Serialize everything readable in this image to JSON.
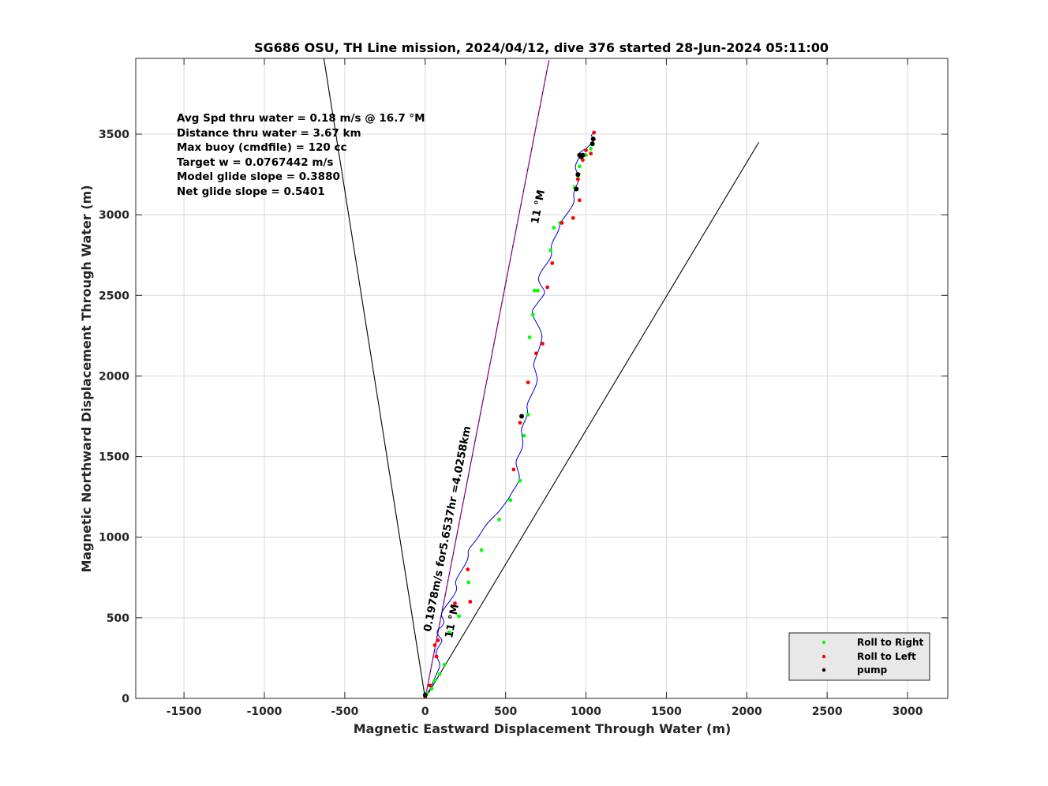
{
  "chart_data": {
    "type": "line",
    "title": "SG686 OSU, TH Line mission, 2024/04/12, dive 376 started 28-Jun-2024 05:11:00",
    "xlabel": "Magnetic Eastward Displacement Through Water (m)",
    "ylabel": "Magnetic Northward Displacement Through Water (m)",
    "xlim": [
      -1800,
      3250
    ],
    "ylim": [
      0,
      3970
    ],
    "xticks": [
      -1500,
      -1000,
      -500,
      0,
      500,
      1000,
      1500,
      2000,
      2500,
      3000
    ],
    "yticks": [
      0,
      500,
      1000,
      1500,
      2000,
      2500,
      3000,
      3500
    ],
    "grid": true,
    "stats_text": [
      "Avg Spd thru water  =  0.18 m/s @  16.7  °M",
      "Distance thru water =  3.67 km",
      "Max buoy (cmdfile)  = 120 cc",
      "Target w                    = 0.0767442 m/s",
      "Model glide slope    = 0.3880",
      "Net glide slope         = 0.5401"
    ],
    "annotations": {
      "heading_label_top": "11 °M",
      "heading_label_bottom": "11 °M",
      "speed_label": "0.1978m/s for5.6537hr =4.0258km"
    },
    "reference_lines": [
      {
        "name": "left-bound",
        "x": [
          0,
          -630
        ],
        "y": [
          0,
          3970
        ],
        "color": "#000000"
      },
      {
        "name": "right-bound",
        "x": [
          0,
          2075
        ],
        "y": [
          0,
          3450
        ],
        "color": "#000000"
      },
      {
        "name": "heading",
        "x": [
          0,
          770
        ],
        "y": [
          0,
          3960
        ],
        "color": "#000000"
      },
      {
        "name": "heading-target",
        "x": [
          0,
          770
        ],
        "y": [
          0,
          3960
        ],
        "color": "#cc00cc"
      }
    ],
    "series": [
      {
        "name": "track",
        "color": "#0000cc",
        "x": [
          0,
          20,
          45,
          60,
          80,
          95,
          75,
          65,
          90,
          110,
          80,
          70,
          110,
          120,
          95,
          120,
          150,
          180,
          200,
          185,
          205,
          230,
          255,
          270,
          265,
          300,
          330,
          355,
          380,
          420,
          460,
          490,
          520,
          540,
          570,
          590,
          575,
          560,
          590,
          610,
          605,
          595,
          620,
          640,
          630,
          655,
          680,
          700,
          690,
          670,
          690,
          710,
          720,
          730,
          710,
          680,
          660,
          690,
          720,
          750,
          720,
          700,
          720,
          760,
          790,
          780,
          800,
          830,
          840,
          870,
          900,
          930,
          920,
          940,
          960,
          945,
          930,
          950,
          960,
          955,
          980,
          1000,
          1010,
          1020,
          1030,
          1045,
          1040,
          1050,
          1045,
          1030,
          1040,
          1055
        ],
        "y": [
          0,
          40,
          90,
          130,
          170,
          210,
          250,
          290,
          330,
          360,
          390,
          420,
          450,
          480,
          520,
          560,
          600,
          640,
          680,
          720,
          760,
          800,
          840,
          880,
          920,
          960,
          1000,
          1040,
          1080,
          1120,
          1160,
          1200,
          1240,
          1280,
          1320,
          1370,
          1420,
          1470,
          1520,
          1570,
          1620,
          1670,
          1720,
          1770,
          1820,
          1870,
          1920,
          1970,
          2020,
          2070,
          2120,
          2170,
          2210,
          2250,
          2300,
          2350,
          2400,
          2440,
          2480,
          2520,
          2560,
          2600,
          2650,
          2700,
          2750,
          2800,
          2850,
          2900,
          2950,
          2990,
          3030,
          3080,
          3130,
          3180,
          3220,
          3260,
          3300,
          3340,
          3360,
          3380,
          3400,
          3410,
          3420,
          3430,
          3440,
          3450,
          3460,
          3470,
          3480,
          3490,
          3500,
          3510
        ]
      },
      {
        "name": "Roll to Right",
        "color": "#00ff00",
        "x": [
          10,
          40,
          60,
          90,
          120,
          150,
          210,
          270,
          350,
          460,
          530,
          590,
          615,
          640,
          650,
          670,
          680,
          700,
          780,
          800,
          840,
          930,
          950,
          960,
          1000,
          1030
        ],
        "y": [
          30,
          60,
          110,
          150,
          210,
          410,
          510,
          720,
          920,
          1110,
          1230,
          1350,
          1630,
          1760,
          2240,
          2380,
          2530,
          2530,
          2780,
          2920,
          2950,
          3170,
          3240,
          3300,
          3370,
          3410
        ]
      },
      {
        "name": "Roll to Left",
        "color": "#ff0000",
        "x": [
          0,
          30,
          70,
          60,
          80,
          185,
          265,
          280,
          550,
          590,
          640,
          690,
          730,
          760,
          790,
          850,
          920,
          960,
          950,
          980,
          1000,
          1030,
          1050
        ],
        "y": [
          10,
          80,
          260,
          330,
          360,
          590,
          800,
          600,
          1420,
          1710,
          1960,
          2140,
          2200,
          2550,
          2700,
          2950,
          2980,
          3090,
          3220,
          3340,
          3400,
          3380,
          3510
        ]
      },
      {
        "name": "pump",
        "color": "#000000",
        "x": [
          0,
          600,
          940,
          950,
          960,
          970,
          980,
          1040,
          1045
        ],
        "y": [
          20,
          1750,
          3160,
          3250,
          3370,
          3360,
          3370,
          3440,
          3470
        ]
      }
    ],
    "legend": {
      "placement": "bottom-right",
      "entries": [
        "Roll to Right",
        "Roll to Left",
        "pump"
      ]
    }
  }
}
